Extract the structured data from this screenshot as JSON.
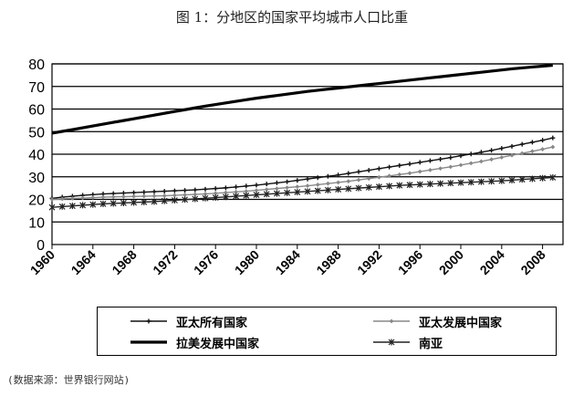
{
  "chart_data": {
    "type": "line",
    "title": "图 1：分地区的国家平均城市人口比重",
    "xlabel": "",
    "ylabel": "",
    "ylim": [
      0,
      80
    ],
    "yticks": [
      "0",
      "10",
      "20",
      "30",
      "40",
      "50",
      "60",
      "70",
      "80"
    ],
    "xlim": [
      1960,
      2010
    ],
    "xticks": [
      "1960",
      "1964",
      "1968",
      "1972",
      "1976",
      "1980",
      "1984",
      "1988",
      "1992",
      "1996",
      "2000",
      "2004",
      "2008"
    ],
    "grid": "horizontal",
    "legend_position": "bottom",
    "x": [
      1960,
      1961,
      1962,
      1963,
      1964,
      1965,
      1966,
      1967,
      1968,
      1969,
      1970,
      1971,
      1972,
      1973,
      1974,
      1975,
      1976,
      1977,
      1978,
      1979,
      1980,
      1981,
      1982,
      1983,
      1984,
      1985,
      1986,
      1987,
      1988,
      1989,
      1990,
      1991,
      1992,
      1993,
      1994,
      1995,
      1996,
      1997,
      1998,
      1999,
      2000,
      2001,
      2002,
      2003,
      2004,
      2005,
      2006,
      2007,
      2008,
      2009
    ],
    "series": [
      {
        "name": "亚太所有国家",
        "color": "#111111",
        "marker": "plus",
        "values": [
          20.5,
          21.0,
          21.4,
          21.8,
          22.1,
          22.4,
          22.6,
          22.8,
          23.0,
          23.2,
          23.4,
          23.6,
          23.8,
          24.0,
          24.2,
          24.5,
          24.8,
          25.1,
          25.5,
          25.9,
          26.3,
          26.8,
          27.3,
          27.8,
          28.4,
          29.0,
          29.6,
          30.2,
          30.8,
          31.5,
          32.2,
          32.9,
          33.6,
          34.3,
          35.0,
          35.7,
          36.4,
          37.1,
          37.8,
          38.5,
          39.3,
          40.1,
          40.9,
          41.7,
          42.6,
          43.5,
          44.4,
          45.3,
          46.2,
          47.2
        ]
      },
      {
        "name": "亚太发展中国家",
        "color": "#888888",
        "marker": "diamond",
        "values": [
          20.0,
          20.2,
          20.4,
          20.6,
          20.8,
          21.0,
          21.1,
          21.2,
          21.3,
          21.4,
          21.5,
          21.6,
          21.8,
          22.0,
          22.2,
          22.4,
          22.7,
          23.0,
          23.3,
          23.6,
          24.0,
          24.4,
          24.8,
          25.2,
          25.6,
          26.0,
          26.5,
          27.0,
          27.5,
          28.0,
          28.6,
          29.2,
          29.8,
          30.4,
          31.0,
          31.6,
          32.3,
          33.0,
          33.7,
          34.4,
          35.2,
          36.0,
          36.8,
          37.7,
          38.6,
          39.5,
          40.4,
          41.3,
          42.2,
          43.2
        ]
      },
      {
        "name": "拉美发展中国家",
        "color": "#000000",
        "marker": "dash",
        "values": [
          49.3,
          50.1,
          50.9,
          51.7,
          52.5,
          53.3,
          54.1,
          54.9,
          55.7,
          56.5,
          57.3,
          58.1,
          58.9,
          59.7,
          60.5,
          61.3,
          62.0,
          62.7,
          63.4,
          64.1,
          64.8,
          65.4,
          66.0,
          66.6,
          67.2,
          67.8,
          68.3,
          68.8,
          69.3,
          69.8,
          70.3,
          70.8,
          71.3,
          71.8,
          72.3,
          72.8,
          73.3,
          73.8,
          74.3,
          74.8,
          75.3,
          75.8,
          76.3,
          76.8,
          77.3,
          77.8,
          78.2,
          78.6,
          79.0,
          79.4
        ]
      },
      {
        "name": "南亚",
        "color": "#222222",
        "marker": "star",
        "values": [
          16.5,
          16.8,
          17.1,
          17.4,
          17.7,
          18.0,
          18.2,
          18.4,
          18.6,
          18.8,
          19.0,
          19.3,
          19.6,
          19.9,
          20.2,
          20.5,
          20.8,
          21.1,
          21.4,
          21.7,
          22.0,
          22.3,
          22.6,
          22.9,
          23.2,
          23.5,
          23.8,
          24.1,
          24.4,
          24.7,
          25.0,
          25.3,
          25.6,
          25.9,
          26.2,
          26.4,
          26.6,
          26.8,
          27.0,
          27.2,
          27.4,
          27.6,
          27.8,
          28.0,
          28.2,
          28.5,
          28.8,
          29.1,
          29.4,
          29.7
        ]
      }
    ]
  },
  "source_note": "(数据来源：世界银行网站)"
}
